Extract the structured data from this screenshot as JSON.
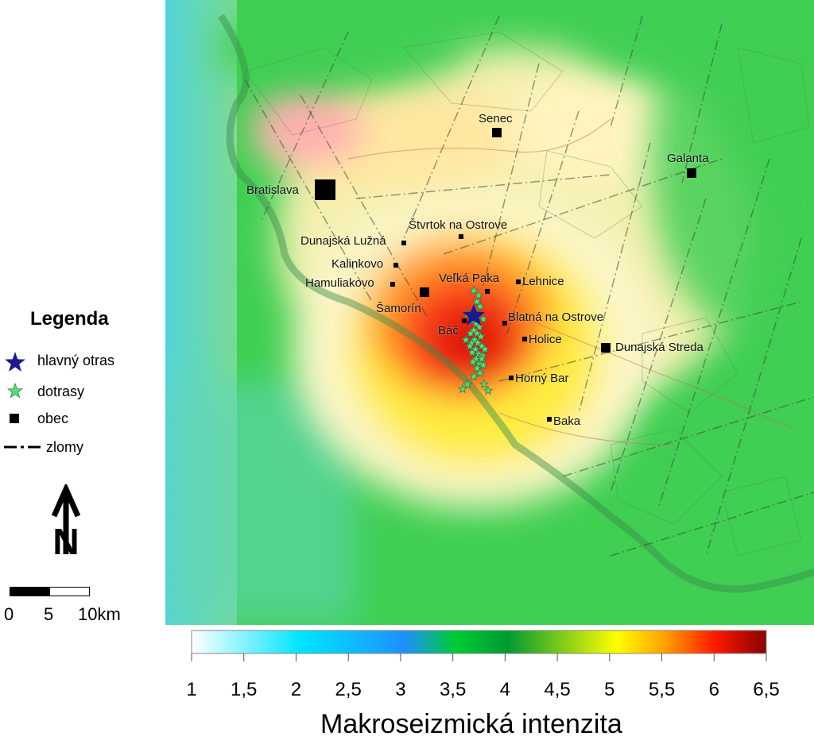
{
  "legend": {
    "title": "Legenda",
    "items": [
      {
        "label": "hlavný otras",
        "symbol": "star-icon"
      },
      {
        "label": "dotrasy",
        "symbol": "small-star-icon"
      },
      {
        "label": "obec",
        "symbol": "square-icon"
      },
      {
        "label": "zlomy",
        "symbol": "dash-dot-line-icon"
      }
    ]
  },
  "north_arrow": {
    "letter": "N"
  },
  "scale_bar": {
    "labels": [
      "0",
      "5",
      "10km"
    ]
  },
  "towns": [
    {
      "name": "Senec"
    },
    {
      "name": "Galanta"
    },
    {
      "name": "Bratislava"
    },
    {
      "name": "Štvrtok na Ostrove"
    },
    {
      "name": "Dunajská Lužná"
    },
    {
      "name": "Kalinkovo"
    },
    {
      "name": "Hamuliakovo"
    },
    {
      "name": "Veľká Paka"
    },
    {
      "name": "Lehnice"
    },
    {
      "name": "Šamorín"
    },
    {
      "name": "Blatná na Ostrove"
    },
    {
      "name": "Báč"
    },
    {
      "name": "Holice"
    },
    {
      "name": "Dunajská Streda"
    },
    {
      "name": "Horný Bar"
    },
    {
      "name": "Baka"
    }
  ],
  "colorbar": {
    "title": "Makroseizmická intenzita",
    "ticks": [
      "1",
      "1,5",
      "2",
      "2,5",
      "3",
      "3,5",
      "4",
      "4,5",
      "5",
      "5,5",
      "6",
      "6,5"
    ],
    "range": [
      1,
      6.5
    ],
    "colors": [
      "#ffffff",
      "#00e5ff",
      "#1e90ff",
      "#00cc33",
      "#009933",
      "#ffff00",
      "#ffa500",
      "#ff1a00",
      "#8b0000"
    ]
  },
  "colors": {
    "intensity_high": "#e02010",
    "intensity_mid": "#ffe040",
    "intensity_low": "#4ad44a",
    "main_shock": "#1a1a8c",
    "aftershock": "#5fd87a"
  }
}
